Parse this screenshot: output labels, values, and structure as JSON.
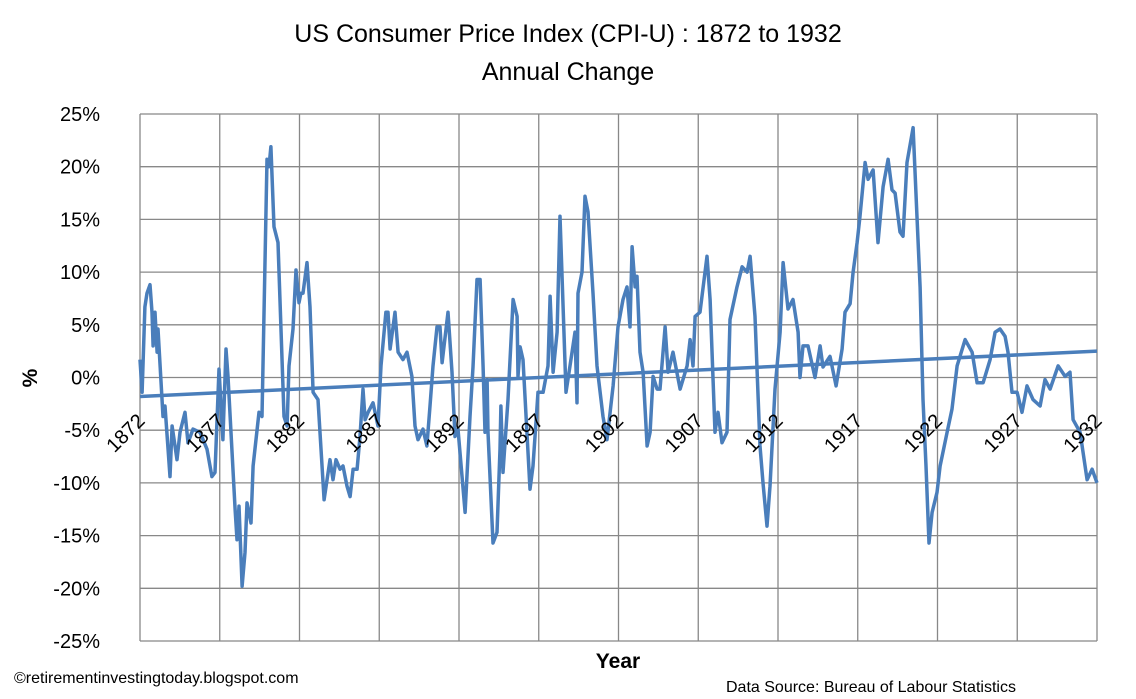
{
  "chart_data": {
    "type": "line",
    "title": "US Consumer Price Index (CPI-U) : 1872 to 1932",
    "subtitle": "Annual Change",
    "xlabel": "Year",
    "ylabel": "%",
    "xlim": [
      1872,
      1932
    ],
    "ylim": [
      -25,
      25
    ],
    "x_ticks": [
      "1872",
      "1877",
      "1882",
      "1887",
      "1892",
      "1897",
      "1902",
      "1907",
      "1912",
      "1917",
      "1922",
      "1927",
      "1932"
    ],
    "y_ticks": [
      "25%",
      "20%",
      "15%",
      "10%",
      "5%",
      "0%",
      "-5%",
      "-10%",
      "-15%",
      "-20%",
      "-25%"
    ],
    "grid": true,
    "legend": "none",
    "line_color": "#4a7ebb",
    "grid_color": "#888888",
    "series": [
      {
        "points": [
          [
            1872.0,
            1.7
          ],
          [
            1872.13,
            -1.4
          ],
          [
            1872.31,
            6.7
          ],
          [
            1872.44,
            8.0
          ],
          [
            1872.63,
            8.8
          ],
          [
            1872.75,
            6.2
          ],
          [
            1872.82,
            3.0
          ],
          [
            1872.94,
            6.2
          ],
          [
            1873.07,
            2.4
          ],
          [
            1873.13,
            4.6
          ],
          [
            1873.44,
            -3.7
          ],
          [
            1873.57,
            -2.7
          ],
          [
            1873.88,
            -9.4
          ],
          [
            1874.01,
            -4.6
          ],
          [
            1874.32,
            -7.8
          ],
          [
            1874.51,
            -5.2
          ],
          [
            1874.82,
            -3.3
          ],
          [
            1875.01,
            -6.2
          ],
          [
            1875.32,
            -4.9
          ],
          [
            1875.76,
            -5.2
          ],
          [
            1876.2,
            -6.8
          ],
          [
            1876.51,
            -9.4
          ],
          [
            1876.7,
            -9.0
          ],
          [
            1876.95,
            0.8
          ],
          [
            1877.2,
            -5.9
          ],
          [
            1877.39,
            2.7
          ],
          [
            1877.52,
            0.1
          ],
          [
            1877.96,
            -12.5
          ],
          [
            1878.08,
            -15.4
          ],
          [
            1878.21,
            -12.2
          ],
          [
            1878.4,
            -19.8
          ],
          [
            1878.58,
            -16.6
          ],
          [
            1878.71,
            -11.9
          ],
          [
            1878.96,
            -13.8
          ],
          [
            1879.09,
            -8.4
          ],
          [
            1879.46,
            -3.3
          ],
          [
            1879.65,
            -3.7
          ],
          [
            1879.96,
            20.7
          ],
          [
            1880.09,
            20.0
          ],
          [
            1880.21,
            21.9
          ],
          [
            1880.4,
            14.3
          ],
          [
            1880.65,
            12.8
          ],
          [
            1881.03,
            -3.7
          ],
          [
            1881.22,
            -4.6
          ],
          [
            1881.34,
            1.1
          ],
          [
            1881.59,
            4.6
          ],
          [
            1881.78,
            10.2
          ],
          [
            1881.97,
            7.1
          ],
          [
            1882.09,
            8.0
          ],
          [
            1882.22,
            8.0
          ],
          [
            1882.47,
            10.9
          ],
          [
            1882.66,
            6.7
          ],
          [
            1882.85,
            -1.4
          ],
          [
            1883.16,
            -2.1
          ],
          [
            1883.54,
            -11.6
          ],
          [
            1883.91,
            -7.8
          ],
          [
            1884.1,
            -9.7
          ],
          [
            1884.29,
            -7.8
          ],
          [
            1884.54,
            -8.7
          ],
          [
            1884.73,
            -8.4
          ],
          [
            1884.98,
            -10.3
          ],
          [
            1885.17,
            -11.3
          ],
          [
            1885.36,
            -8.7
          ],
          [
            1885.61,
            -8.7
          ],
          [
            1885.79,
            -5.6
          ],
          [
            1885.98,
            -1.1
          ],
          [
            1886.11,
            -4.0
          ],
          [
            1886.3,
            -3.3
          ],
          [
            1886.61,
            -2.4
          ],
          [
            1886.92,
            -4.6
          ],
          [
            1887.11,
            1.1
          ],
          [
            1887.42,
            6.2
          ],
          [
            1887.55,
            6.2
          ],
          [
            1887.68,
            2.7
          ],
          [
            1887.99,
            6.2
          ],
          [
            1888.18,
            2.4
          ],
          [
            1888.49,
            1.7
          ],
          [
            1888.74,
            2.4
          ],
          [
            1889.05,
            0.1
          ],
          [
            1889.24,
            -4.6
          ],
          [
            1889.43,
            -5.9
          ],
          [
            1889.74,
            -4.9
          ],
          [
            1889.99,
            -6.5
          ],
          [
            1890.18,
            -2.7
          ],
          [
            1890.37,
            1.1
          ],
          [
            1890.62,
            4.8
          ],
          [
            1890.81,
            4.8
          ],
          [
            1890.94,
            1.4
          ],
          [
            1891.31,
            6.2
          ],
          [
            1891.56,
            0.5
          ],
          [
            1891.75,
            -5.6
          ],
          [
            1891.94,
            -4.9
          ],
          [
            1892.38,
            -12.8
          ],
          [
            1892.69,
            -3.7
          ],
          [
            1892.88,
            1.0
          ],
          [
            1893.13,
            9.3
          ],
          [
            1893.32,
            9.3
          ],
          [
            1893.51,
            1.0
          ],
          [
            1893.63,
            -5.2
          ],
          [
            1893.76,
            -0.2
          ],
          [
            1893.82,
            -5.2
          ],
          [
            1894.13,
            -15.7
          ],
          [
            1894.38,
            -14.7
          ],
          [
            1894.57,
            -6.8
          ],
          [
            1894.63,
            -2.7
          ],
          [
            1894.76,
            -9.0
          ],
          [
            1895.07,
            -2.1
          ],
          [
            1895.39,
            7.4
          ],
          [
            1895.64,
            5.8
          ],
          [
            1895.7,
            0.1
          ],
          [
            1895.83,
            2.9
          ],
          [
            1896.01,
            1.7
          ],
          [
            1896.45,
            -10.6
          ],
          [
            1896.64,
            -8.4
          ],
          [
            1896.95,
            -1.4
          ],
          [
            1897.27,
            -1.4
          ],
          [
            1897.58,
            1.1
          ],
          [
            1897.71,
            7.7
          ],
          [
            1897.9,
            0.5
          ],
          [
            1898.15,
            4.3
          ],
          [
            1898.33,
            15.3
          ],
          [
            1898.71,
            -1.4
          ],
          [
            1898.96,
            1.1
          ],
          [
            1899.27,
            4.3
          ],
          [
            1899.4,
            -2.4
          ],
          [
            1899.46,
            8.0
          ],
          [
            1899.71,
            10.0
          ],
          [
            1899.9,
            17.2
          ],
          [
            1900.09,
            15.7
          ],
          [
            1900.4,
            8.0
          ],
          [
            1900.65,
            1.1
          ],
          [
            1901.03,
            -3.7
          ],
          [
            1901.28,
            -5.9
          ],
          [
            1901.66,
            -0.8
          ],
          [
            1901.97,
            4.8
          ],
          [
            1902.28,
            7.4
          ],
          [
            1902.53,
            8.6
          ],
          [
            1902.72,
            4.8
          ],
          [
            1902.85,
            12.4
          ],
          [
            1903.04,
            8.6
          ],
          [
            1903.16,
            9.6
          ],
          [
            1903.35,
            2.4
          ],
          [
            1903.54,
            0.5
          ],
          [
            1903.79,
            -6.5
          ],
          [
            1903.98,
            -5.2
          ],
          [
            1904.17,
            0.1
          ],
          [
            1904.42,
            -1.1
          ],
          [
            1904.6,
            -1.1
          ],
          [
            1904.92,
            4.8
          ],
          [
            1905.11,
            0.5
          ],
          [
            1905.42,
            2.4
          ],
          [
            1905.86,
            -1.1
          ],
          [
            1906.3,
            1.1
          ],
          [
            1906.49,
            3.6
          ],
          [
            1906.67,
            1.1
          ],
          [
            1906.8,
            5.8
          ],
          [
            1907.11,
            6.2
          ],
          [
            1907.55,
            11.5
          ],
          [
            1907.74,
            7.4
          ],
          [
            1908.05,
            -5.2
          ],
          [
            1908.24,
            -3.3
          ],
          [
            1908.49,
            -6.2
          ],
          [
            1908.8,
            -5.2
          ],
          [
            1908.99,
            5.5
          ],
          [
            1909.43,
            8.6
          ],
          [
            1909.75,
            10.5
          ],
          [
            1910.06,
            10.0
          ],
          [
            1910.25,
            11.5
          ],
          [
            1910.56,
            5.8
          ],
          [
            1910.87,
            -6.5
          ],
          [
            1911.06,
            -10.0
          ],
          [
            1911.31,
            -14.1
          ],
          [
            1911.5,
            -10.3
          ],
          [
            1911.81,
            -1.1
          ],
          [
            1912.13,
            4.3
          ],
          [
            1912.32,
            10.9
          ],
          [
            1912.63,
            6.5
          ],
          [
            1912.94,
            7.4
          ],
          [
            1913.26,
            4.3
          ],
          [
            1913.38,
            0.0
          ],
          [
            1913.57,
            3.0
          ],
          [
            1913.88,
            3.0
          ],
          [
            1914.32,
            0.0
          ],
          [
            1914.64,
            3.0
          ],
          [
            1914.82,
            1.0
          ],
          [
            1915.26,
            2.0
          ],
          [
            1915.64,
            -0.8
          ],
          [
            1916.02,
            2.7
          ],
          [
            1916.2,
            6.2
          ],
          [
            1916.52,
            7.0
          ],
          [
            1916.71,
            10.0
          ],
          [
            1916.96,
            12.8
          ],
          [
            1917.14,
            15.3
          ],
          [
            1917.46,
            20.4
          ],
          [
            1917.65,
            18.8
          ],
          [
            1917.96,
            19.7
          ],
          [
            1918.27,
            12.8
          ],
          [
            1918.59,
            18.1
          ],
          [
            1918.9,
            20.7
          ],
          [
            1919.15,
            17.8
          ],
          [
            1919.34,
            17.5
          ],
          [
            1919.65,
            13.8
          ],
          [
            1919.84,
            13.4
          ],
          [
            1920.09,
            20.4
          ],
          [
            1920.47,
            23.7
          ],
          [
            1920.72,
            15.0
          ],
          [
            1920.91,
            8.6
          ],
          [
            1921.09,
            -2.1
          ],
          [
            1921.28,
            -8.4
          ],
          [
            1921.47,
            -15.7
          ],
          [
            1921.66,
            -12.8
          ],
          [
            1921.97,
            -10.9
          ],
          [
            1922.16,
            -8.4
          ],
          [
            1922.6,
            -5.2
          ],
          [
            1922.91,
            -3.0
          ],
          [
            1923.23,
            1.1
          ],
          [
            1923.73,
            3.6
          ],
          [
            1924.17,
            2.4
          ],
          [
            1924.48,
            -0.5
          ],
          [
            1924.86,
            -0.5
          ],
          [
            1925.3,
            1.7
          ],
          [
            1925.61,
            4.3
          ],
          [
            1925.92,
            4.6
          ],
          [
            1926.24,
            3.9
          ],
          [
            1926.42,
            2.4
          ],
          [
            1926.67,
            -1.4
          ],
          [
            1926.99,
            -1.4
          ],
          [
            1927.3,
            -3.3
          ],
          [
            1927.61,
            -0.8
          ],
          [
            1927.99,
            -2.1
          ],
          [
            1928.43,
            -2.7
          ],
          [
            1928.74,
            -0.2
          ],
          [
            1929.06,
            -1.1
          ],
          [
            1929.56,
            1.1
          ],
          [
            1930.0,
            0.1
          ],
          [
            1930.31,
            0.5
          ],
          [
            1930.5,
            -4.0
          ],
          [
            1930.94,
            -5.2
          ],
          [
            1931.38,
            -9.7
          ],
          [
            1931.69,
            -8.7
          ],
          [
            1932.0,
            -10.0
          ]
        ]
      }
    ],
    "trendline": {
      "type": "linear",
      "start": [
        1872,
        -1.8
      ],
      "end": [
        1932,
        2.5
      ]
    }
  },
  "footer": {
    "credit": "©retirementinvestingtoday.blogspot.com",
    "source": "Data Source: Bureau  of Labour Statistics"
  }
}
